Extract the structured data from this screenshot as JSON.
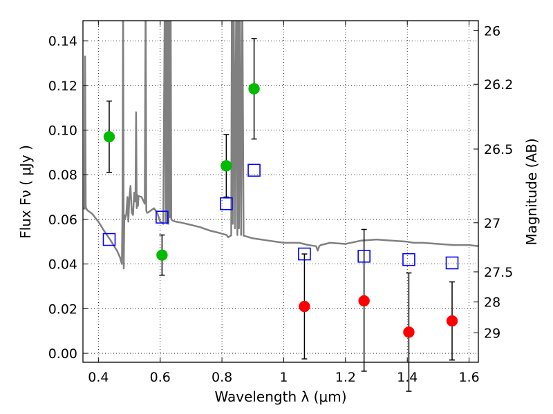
{
  "chart_data": {
    "type": "scatter",
    "title": "",
    "xlabel": "Wavelength  λ (μm)",
    "ylabel": "Flux  Fν  ( μJy )",
    "y2label": "Magnitude (AB)",
    "xlim": [
      0.35,
      1.63
    ],
    "ylim": [
      -0.004,
      0.149
    ],
    "xticks": [
      0.4,
      0.6,
      0.8,
      1.0,
      1.2,
      1.4,
      1.6
    ],
    "xtick_labels": [
      "0.4",
      "0.6",
      "0.8",
      "1",
      "1.2",
      "1.4",
      "1.6"
    ],
    "yticks": [
      0.0,
      0.02,
      0.04,
      0.06,
      0.08,
      0.1,
      0.12,
      0.14
    ],
    "ytick_labels": [
      "0.00",
      "0.02",
      "0.04",
      "0.06",
      "0.08",
      "0.10",
      "0.12",
      "0.14"
    ],
    "y2ticks": [
      {
        "label": "26",
        "flux": 0.1445
      },
      {
        "label": "26.2",
        "flux": 0.1205
      },
      {
        "label": "26.5",
        "flux": 0.0915
      },
      {
        "label": "27",
        "flux": 0.0585
      },
      {
        "label": "27.5",
        "flux": 0.0365
      },
      {
        "label": "28",
        "flux": 0.023
      },
      {
        "label": "29",
        "flux": 0.0092
      }
    ],
    "grid": true,
    "series": [
      {
        "marker": "circle",
        "color": "#00bb00",
        "points": [
          {
            "x": 0.435,
            "y": 0.097,
            "ylo": 0.081,
            "yhi": 0.113
          },
          {
            "x": 0.606,
            "y": 0.044,
            "ylo": 0.035,
            "yhi": 0.053
          },
          {
            "x": 0.814,
            "y": 0.084,
            "ylo": 0.07,
            "yhi": 0.098
          },
          {
            "x": 0.904,
            "y": 0.1185,
            "ylo": 0.096,
            "yhi": 0.141
          }
        ]
      },
      {
        "marker": "circle",
        "color": "#ff0000",
        "points": [
          {
            "x": 1.067,
            "y": 0.021,
            "ylo": -0.0025,
            "yhi": 0.0445
          },
          {
            "x": 1.26,
            "y": 0.0235,
            "ylo": -0.008,
            "yhi": 0.0555
          },
          {
            "x": 1.405,
            "y": 0.0095,
            "ylo": -0.017,
            "yhi": 0.036
          },
          {
            "x": 1.545,
            "y": 0.0145,
            "ylo": -0.003,
            "yhi": 0.032
          }
        ]
      },
      {
        "marker": "open-square",
        "color": "#0000ff",
        "points": [
          {
            "x": 0.435,
            "y": 0.051
          },
          {
            "x": 0.606,
            "y": 0.061
          },
          {
            "x": 0.814,
            "y": 0.067
          },
          {
            "x": 0.904,
            "y": 0.082
          },
          {
            "x": 1.067,
            "y": 0.0445
          },
          {
            "x": 1.26,
            "y": 0.0435
          },
          {
            "x": 1.405,
            "y": 0.042
          },
          {
            "x": 1.545,
            "y": 0.0405
          }
        ]
      }
    ],
    "model_spectrum": {
      "color": "#808080",
      "x": [
        0.35,
        0.355,
        0.357,
        0.359,
        0.361,
        0.363,
        0.365,
        0.38,
        0.4,
        0.42,
        0.44,
        0.46,
        0.47,
        0.476,
        0.478,
        0.48,
        0.482,
        0.484,
        0.486,
        0.49,
        0.494,
        0.497,
        0.5,
        0.504,
        0.508,
        0.512,
        0.516,
        0.52,
        0.522,
        0.524,
        0.526,
        0.528,
        0.53,
        0.54,
        0.55,
        0.553,
        0.555,
        0.557,
        0.56,
        0.57,
        0.58,
        0.59,
        0.6,
        0.61,
        0.615,
        0.618,
        0.62,
        0.622,
        0.625,
        0.627,
        0.63,
        0.632,
        0.634,
        0.636,
        0.64,
        0.65,
        0.67,
        0.7,
        0.73,
        0.76,
        0.79,
        0.815,
        0.82,
        0.83,
        0.832,
        0.835,
        0.838,
        0.842,
        0.846,
        0.85,
        0.852,
        0.855,
        0.858,
        0.862,
        0.866,
        0.87,
        0.9,
        0.95,
        1.0,
        1.05,
        1.08,
        1.105,
        1.11,
        1.115,
        1.12,
        1.15,
        1.2,
        1.25,
        1.3,
        1.35,
        1.4,
        1.42,
        1.45,
        1.5,
        1.55,
        1.6,
        1.63
      ],
      "y": [
        0.065,
        0.0648,
        0.133,
        0.066,
        0.0645,
        0.0645,
        0.064,
        0.0625,
        0.059,
        0.0545,
        0.0505,
        0.046,
        0.043,
        0.04,
        0.065,
        0.16,
        0.038,
        0.062,
        0.06,
        0.062,
        0.07,
        0.059,
        0.069,
        0.075,
        0.063,
        0.062,
        0.072,
        0.068,
        0.108,
        0.065,
        0.071,
        0.066,
        0.0705,
        0.07,
        0.067,
        0.16,
        0.064,
        0.063,
        0.063,
        0.064,
        0.065,
        0.063,
        0.059,
        0.058,
        0.16,
        0.059,
        0.16,
        0.058,
        0.16,
        0.058,
        0.16,
        0.061,
        0.16,
        0.06,
        0.0595,
        0.059,
        0.0585,
        0.0575,
        0.0565,
        0.055,
        0.054,
        0.053,
        0.052,
        0.0528,
        0.16,
        0.058,
        0.16,
        0.056,
        0.16,
        0.053,
        0.16,
        0.056,
        0.16,
        0.053,
        0.16,
        0.0527,
        0.0515,
        0.0505,
        0.0495,
        0.0495,
        0.0485,
        0.048,
        0.046,
        0.048,
        0.0485,
        0.0495,
        0.049,
        0.0505,
        0.051,
        0.0505,
        0.05,
        0.0495,
        0.0495,
        0.049,
        0.0485,
        0.0485,
        0.048
      ]
    }
  }
}
